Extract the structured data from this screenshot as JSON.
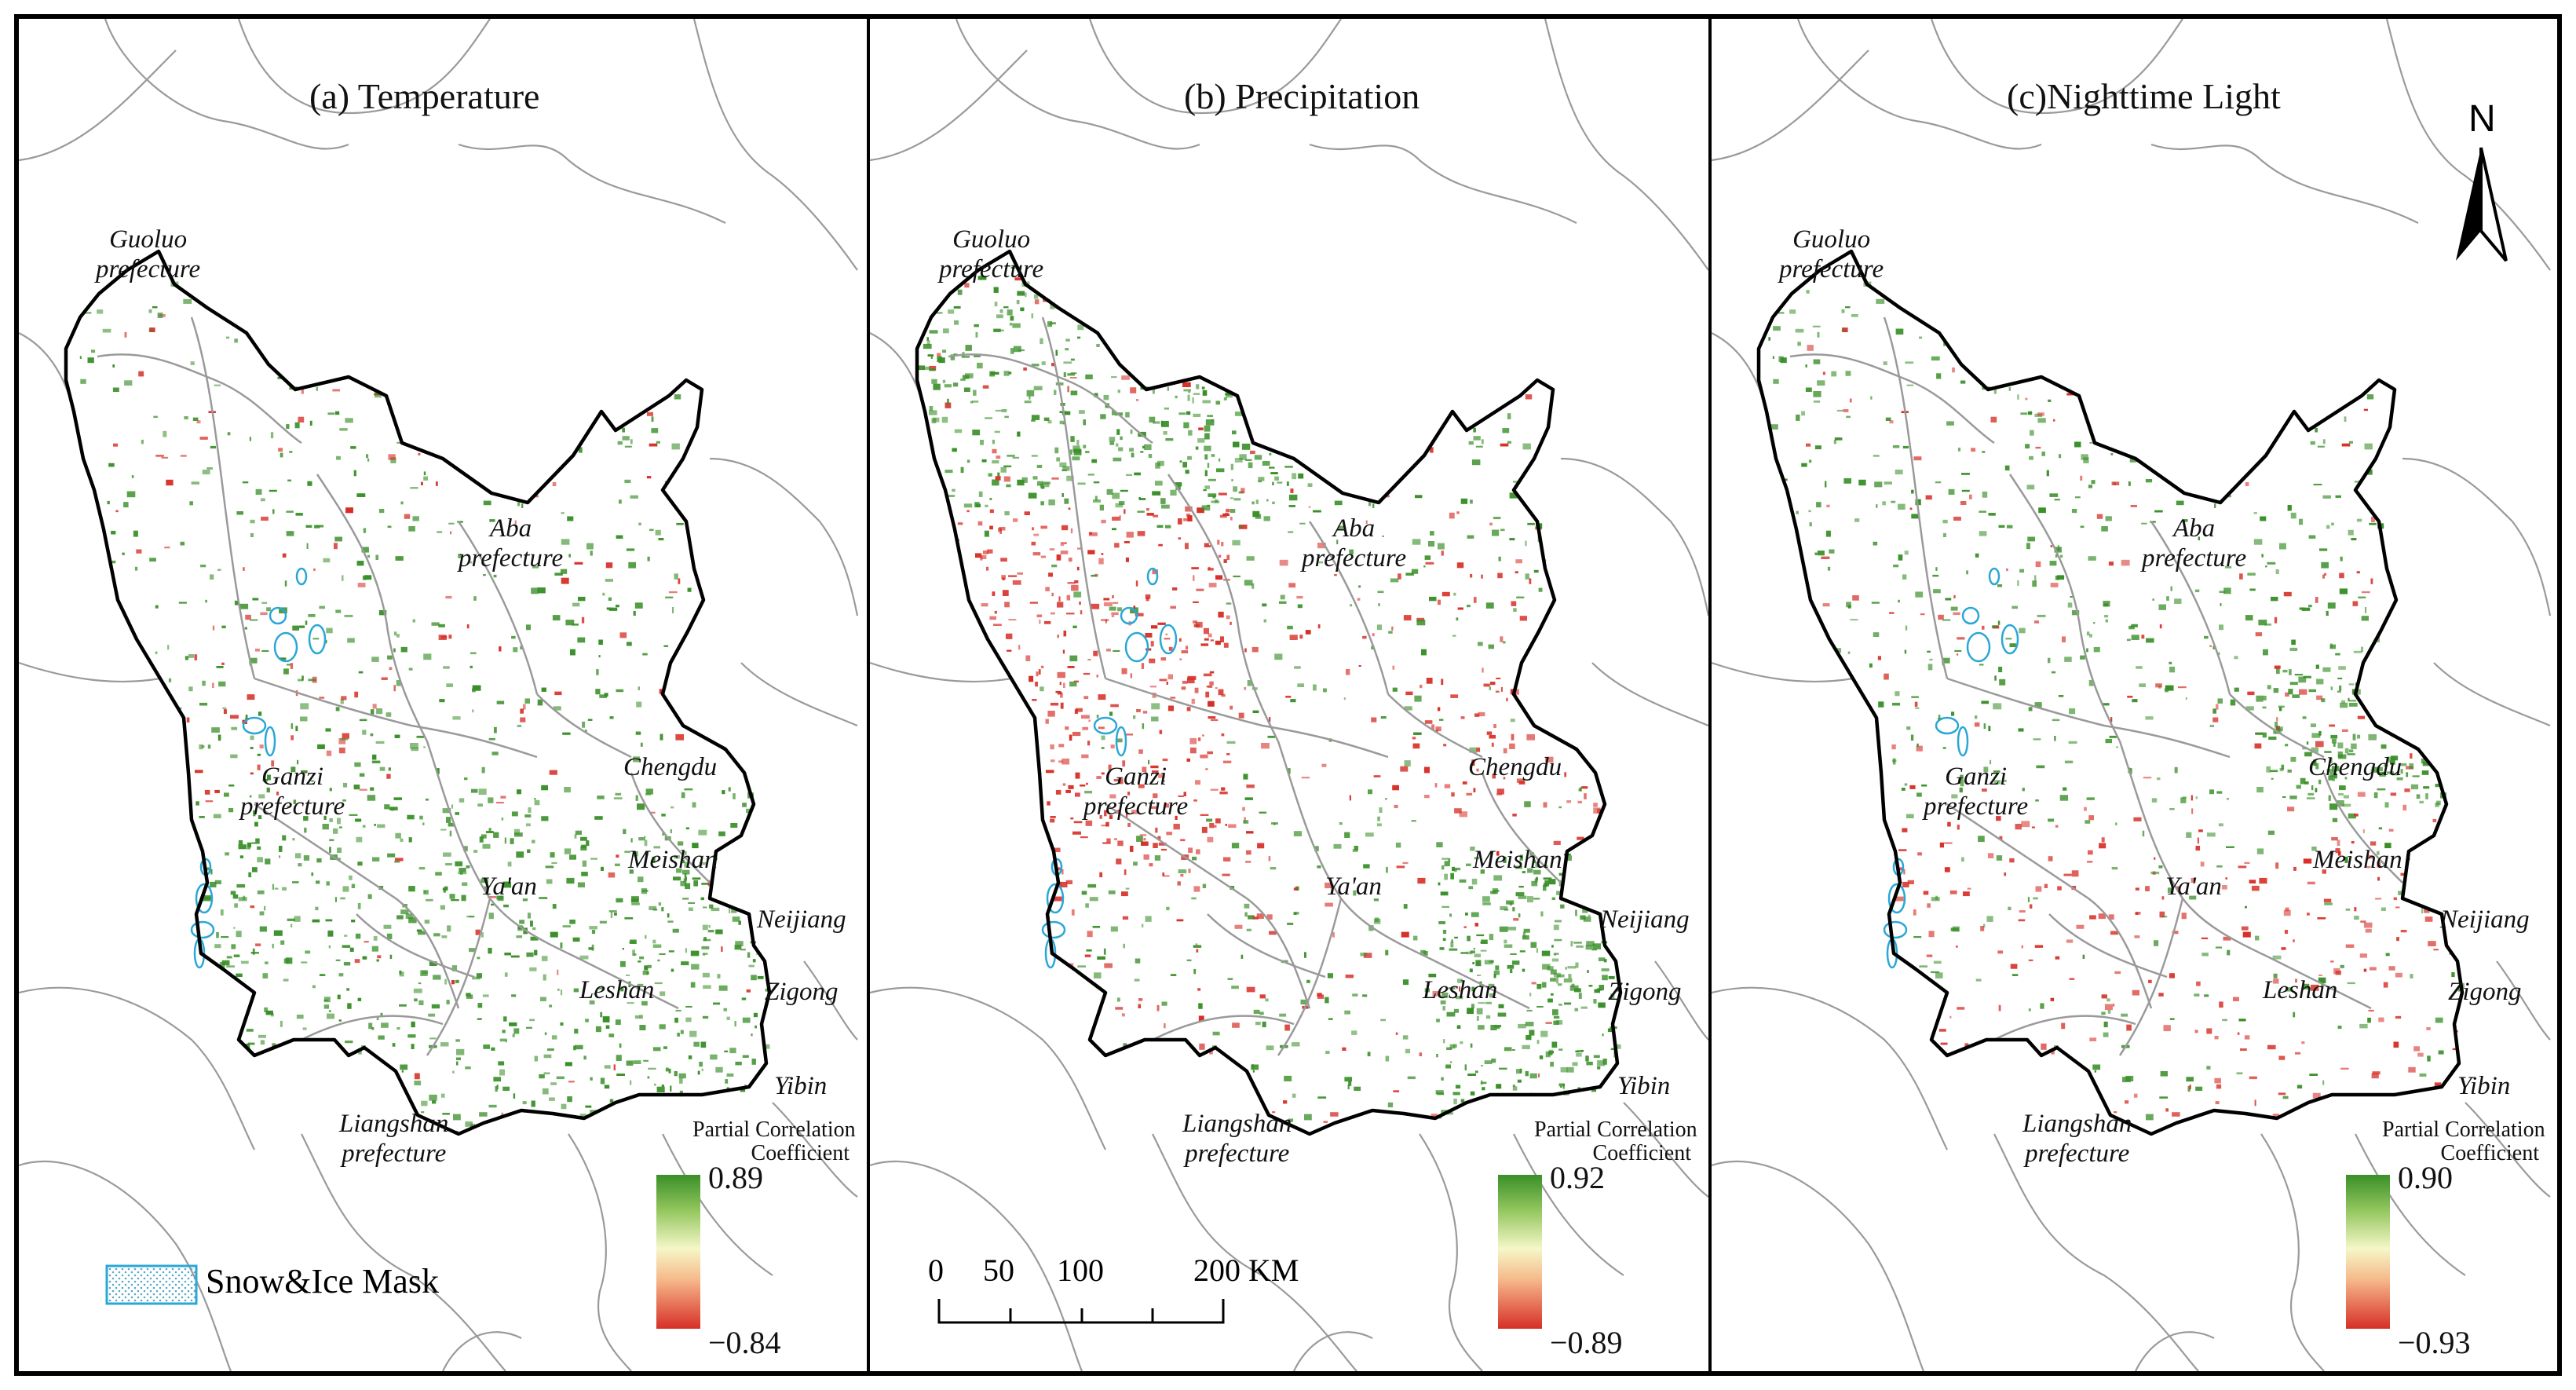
{
  "panels": [
    {
      "title": "(a) Temperature",
      "labels": {
        "guoluo": "Guoluo\nprefecture",
        "aba": "Aba\nprefecture",
        "ganzi": "Ganzi\nprefecture",
        "chengdu": "Chengdu",
        "yaan": "Ya'an",
        "meishan": "Meishan",
        "neijiang": "Neijiang",
        "leshan": "Leshan",
        "zigong": "Zigong",
        "yibin": "Yibin",
        "liangshan": "Liangshan\nprefecture"
      },
      "legend": {
        "title": "Partial Correlation\nCoefficient",
        "max": "0.89",
        "min": "−0.84"
      }
    },
    {
      "title": "(b) Precipitation",
      "labels": {
        "guoluo": "Guoluo\nprefecture",
        "aba": "Aba\nprefecture",
        "ganzi": "Ganzi\nprefecture",
        "chengdu": "Chengdu",
        "yaan": "Ya'an",
        "meishan": "Meishan",
        "neijiang": "Neijiang",
        "leshan": "Leshan",
        "zigong": "Zigong",
        "yibin": "Yibin",
        "liangshan": "Liangshan\nprefecture"
      },
      "legend": {
        "title": "Partial Correlation\nCoefficient",
        "max": "0.92",
        "min": "−0.89"
      }
    },
    {
      "title": "(c)Nighttime Light",
      "labels": {
        "guoluo": "Guoluo\nprefecture",
        "aba": "Aba\nprefecture",
        "ganzi": "Ganzi\nprefecture",
        "chengdu": "Chengdu",
        "yaan": "Ya'an",
        "meishan": "Meishan",
        "neijiang": "Neijiang",
        "leshan": "Leshan",
        "zigong": "Zigong",
        "yibin": "Yibin",
        "liangshan": "Liangshan\nprefecture"
      },
      "legend": {
        "title": "Partial Correlation\nCoefficient",
        "max": "0.90",
        "min": "−0.93"
      }
    }
  ],
  "snow_ice_mask_label": "Snow&Ice Mask",
  "scale_bar": {
    "ticks": [
      "0",
      "50",
      "100",
      "200 KM"
    ]
  },
  "north_arrow": "N",
  "colors": {
    "positive": "#3a8f29",
    "negative": "#d62f27",
    "snow_ice": "#2aa7d6",
    "county_border": "#9a9a9a",
    "study_area_border": "#000000"
  }
}
